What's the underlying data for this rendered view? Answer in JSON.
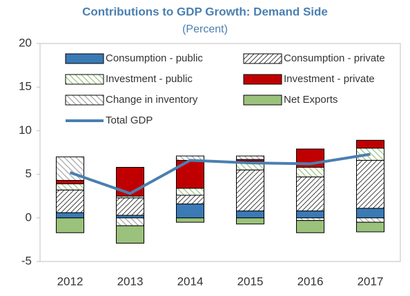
{
  "chart_data": {
    "type": "stacked-bar-line",
    "title": "Contributions to GDP Growth: Demand Side",
    "subtitle": "(Percent)",
    "categories": [
      "2012",
      "2013",
      "2014",
      "2015",
      "2016",
      "2017"
    ],
    "ylim": [
      -5,
      20
    ],
    "yticks": [
      -5,
      0,
      5,
      10,
      15,
      20
    ],
    "series": [
      {
        "name": "Consumption - public",
        "color": "#3a7ab5",
        "values": [
          0.6,
          0.3,
          1.6,
          0.8,
          0.8,
          1.1
        ]
      },
      {
        "name": "Consumption - private",
        "color": "#404040",
        "pattern": "dense-hatch",
        "values": [
          2.6,
          2.0,
          1.0,
          4.7,
          3.9,
          5.5
        ]
      },
      {
        "name": "Investment - public",
        "color": "#9bc27c",
        "pattern": "light-hatch",
        "values": [
          0.7,
          0.2,
          0.8,
          1.0,
          1.1,
          1.4
        ]
      },
      {
        "name": "Investment - private",
        "color": "#c00000",
        "values": [
          0.4,
          3.3,
          3.2,
          0.2,
          2.1,
          0.9
        ]
      },
      {
        "name": "Change in inventory",
        "color": "#a6a6a6",
        "pattern": "light-hatch",
        "values": [
          2.7,
          -0.9,
          0.5,
          0.4,
          -0.3,
          -0.5
        ]
      },
      {
        "name": "Net Exports",
        "color": "#9bc27c",
        "values": [
          -1.7,
          -2.0,
          -0.5,
          -0.7,
          -1.4,
          -1.1
        ]
      },
      {
        "name": "Total GDP",
        "color": "#4a7fb0",
        "line": true,
        "values": [
          5.2,
          2.8,
          6.6,
          6.3,
          6.2,
          7.3
        ]
      }
    ]
  }
}
